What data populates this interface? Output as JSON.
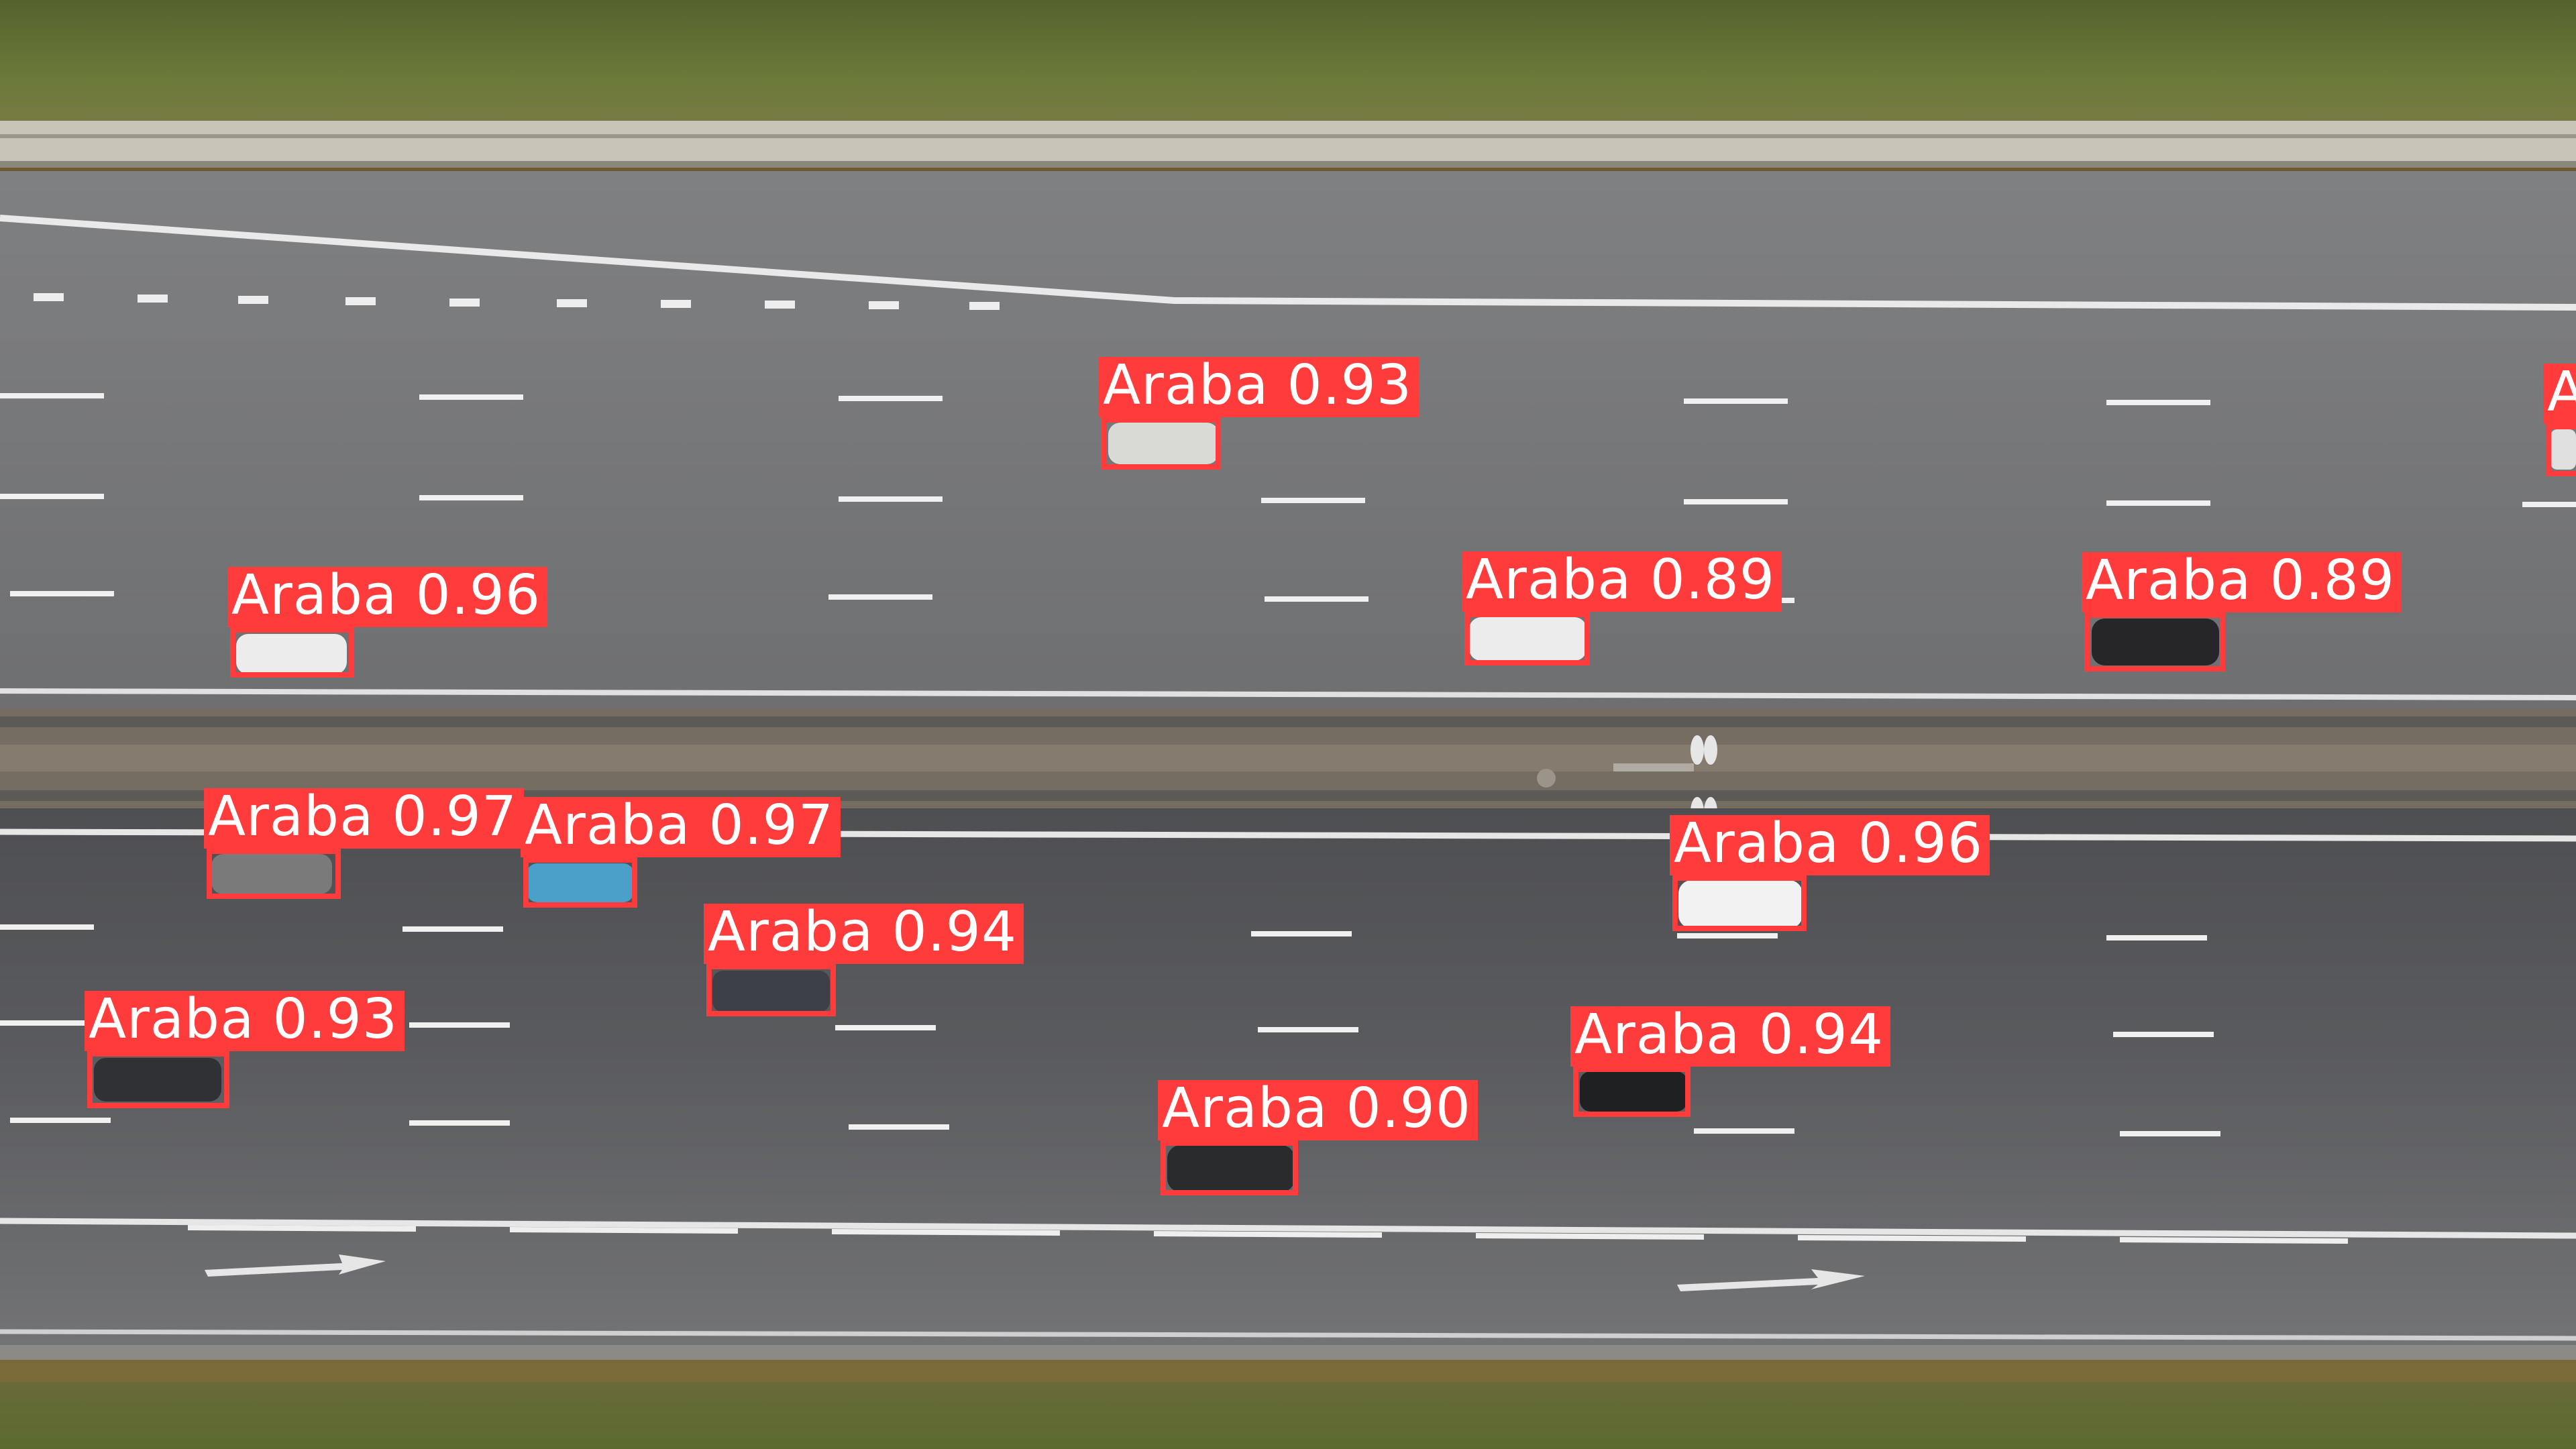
{
  "box_color": "#ff3b3b",
  "label_text_color": "#ffffff",
  "detections": [
    {
      "label": "Araba",
      "score": "0.93"
    },
    {
      "label": "Araba",
      "score": "0.96"
    },
    {
      "label": "Araba",
      "score": "0.89"
    },
    {
      "label": "Araba",
      "score": "0.89"
    },
    {
      "label": "Araba",
      "score": "0.97"
    },
    {
      "label": "Araba",
      "score": "0.97"
    },
    {
      "label": "Araba",
      "score": "0.96"
    },
    {
      "label": "Araba",
      "score": "0.94"
    },
    {
      "label": "Araba",
      "score": "0.93"
    },
    {
      "label": "Araba",
      "score": "0.94"
    },
    {
      "label": "Araba",
      "score": "0.90"
    },
    {
      "label": "A",
      "score": ""
    }
  ]
}
